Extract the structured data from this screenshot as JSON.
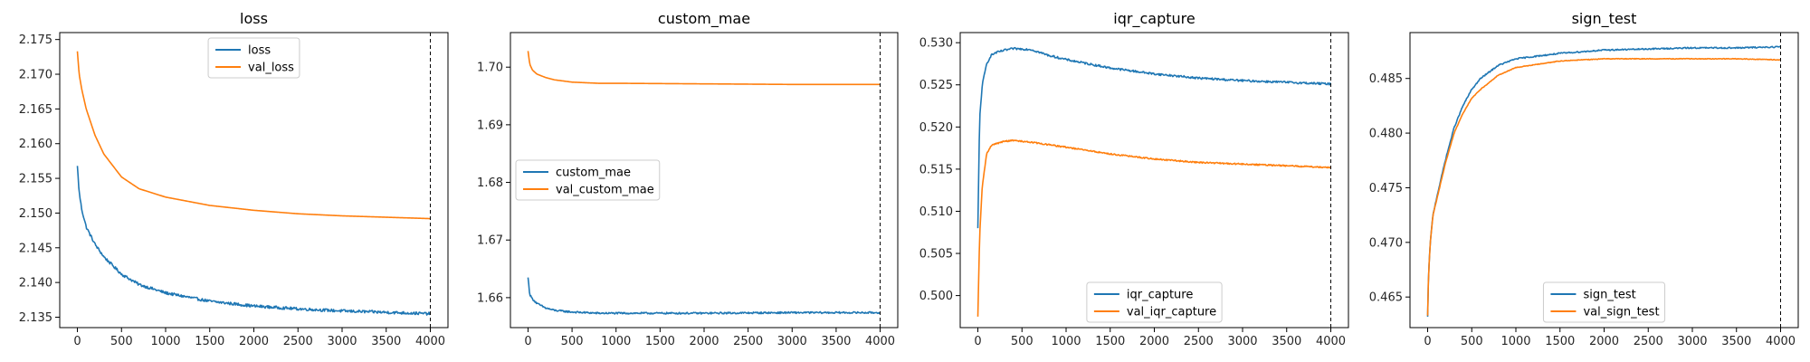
{
  "colors": {
    "series1": "#1f77b4",
    "series2": "#ff7f0e",
    "axis": "#000000",
    "vline": "#000000"
  },
  "chart_data": [
    {
      "type": "line",
      "title": "loss",
      "xlim": [
        -200,
        4200
      ],
      "ylim": [
        2.1335,
        2.176
      ],
      "xticks": [
        0,
        500,
        1000,
        1500,
        2000,
        2500,
        3000,
        3500,
        4000
      ],
      "yticks": [
        2.135,
        2.14,
        2.145,
        2.15,
        2.155,
        2.16,
        2.165,
        2.17,
        2.175
      ],
      "ytick_labels": [
        "2.135",
        "2.140",
        "2.145",
        "2.150",
        "2.155",
        "2.160",
        "2.165",
        "2.170",
        "2.175"
      ],
      "vline_x": 4000,
      "legend": "upper-center",
      "series": [
        {
          "name": "loss",
          "noise": 0.0002,
          "x": [
            0,
            20,
            50,
            100,
            200,
            300,
            500,
            700,
            1000,
            1500,
            2000,
            2500,
            3000,
            3500,
            4000
          ],
          "y": [
            2.1568,
            2.153,
            2.1505,
            2.148,
            2.1455,
            2.1437,
            2.1412,
            2.1397,
            2.1385,
            2.1373,
            2.1366,
            2.1362,
            2.1359,
            2.1357,
            2.1355
          ]
        },
        {
          "name": "val_loss",
          "noise": 0,
          "x": [
            0,
            20,
            50,
            100,
            200,
            300,
            500,
            700,
            1000,
            1500,
            2000,
            2500,
            3000,
            3500,
            4000
          ],
          "y": [
            2.1733,
            2.17,
            2.1678,
            2.165,
            2.1612,
            2.1585,
            2.1552,
            2.1535,
            2.1523,
            2.1511,
            2.1504,
            2.1499,
            2.1496,
            2.1494,
            2.1492
          ]
        }
      ]
    },
    {
      "type": "line",
      "title": "custom_mae",
      "xlim": [
        -200,
        4200
      ],
      "ylim": [
        1.6548,
        1.706
      ],
      "xticks": [
        0,
        500,
        1000,
        1500,
        2000,
        2500,
        3000,
        3500,
        4000
      ],
      "yticks": [
        1.66,
        1.67,
        1.68,
        1.69,
        1.7
      ],
      "ytick_labels": [
        "1.66",
        "1.67",
        "1.68",
        "1.69",
        "1.70"
      ],
      "vline_x": 4000,
      "legend": "center-left",
      "series": [
        {
          "name": "custom_mae",
          "noise": 0.00015,
          "x": [
            0,
            20,
            50,
            100,
            200,
            300,
            500,
            800,
            1000,
            2000,
            3000,
            4000
          ],
          "y": [
            1.6635,
            1.6605,
            1.6598,
            1.659,
            1.6582,
            1.6578,
            1.6575,
            1.6573,
            1.6573,
            1.6573,
            1.6574,
            1.6574
          ]
        },
        {
          "name": "val_custom_mae",
          "noise": 0,
          "x": [
            0,
            20,
            50,
            100,
            200,
            300,
            500,
            800,
            1000,
            2000,
            3000,
            4000
          ],
          "y": [
            1.7028,
            1.7005,
            1.6995,
            1.6988,
            1.6982,
            1.6978,
            1.6974,
            1.6972,
            1.6972,
            1.6971,
            1.697,
            1.697
          ]
        }
      ]
    },
    {
      "type": "line",
      "title": "iqr_capture",
      "xlim": [
        -200,
        4200
      ],
      "ylim": [
        0.4962,
        0.5312
      ],
      "xticks": [
        0,
        500,
        1000,
        1500,
        2000,
        2500,
        3000,
        3500,
        4000
      ],
      "yticks": [
        0.5,
        0.505,
        0.51,
        0.515,
        0.52,
        0.525,
        0.53
      ],
      "ytick_labels": [
        "0.500",
        "0.505",
        "0.510",
        "0.515",
        "0.520",
        "0.525",
        "0.530"
      ],
      "vline_x": 4000,
      "legend": "lower-center",
      "series": [
        {
          "name": "iqr_capture",
          "noise": 0.00012,
          "x": [
            0,
            20,
            50,
            100,
            150,
            200,
            300,
            400,
            600,
            800,
            1000,
            1500,
            2000,
            2500,
            3000,
            3500,
            4000
          ],
          "y": [
            0.508,
            0.521,
            0.525,
            0.5275,
            0.5285,
            0.5288,
            0.5291,
            0.5293,
            0.5292,
            0.5285,
            0.528,
            0.527,
            0.5263,
            0.5258,
            0.5255,
            0.5253,
            0.5251
          ]
        },
        {
          "name": "val_iqr_capture",
          "noise": 8e-05,
          "x": [
            0,
            20,
            50,
            100,
            150,
            200,
            300,
            400,
            600,
            800,
            1000,
            1500,
            2000,
            2500,
            3000,
            3500,
            4000
          ],
          "y": [
            0.4975,
            0.507,
            0.513,
            0.5168,
            0.5178,
            0.518,
            0.5183,
            0.5184,
            0.5182,
            0.5179,
            0.5176,
            0.5168,
            0.5162,
            0.5158,
            0.5156,
            0.5154,
            0.5152
          ]
        }
      ]
    },
    {
      "type": "line",
      "title": "sign_test",
      "xlim": [
        -200,
        4200
      ],
      "ylim": [
        0.4622,
        0.4892
      ],
      "xticks": [
        0,
        500,
        1000,
        1500,
        2000,
        2500,
        3000,
        3500,
        4000
      ],
      "yticks": [
        0.465,
        0.47,
        0.475,
        0.48,
        0.485
      ],
      "ytick_labels": [
        "0.465",
        "0.470",
        "0.475",
        "0.480",
        "0.485"
      ],
      "vline_x": 4000,
      "legend": "lower-center",
      "series": [
        {
          "name": "sign_test",
          "noise": 6e-05,
          "x": [
            0,
            10,
            30,
            60,
            100,
            200,
            300,
            400,
            500,
            600,
            800,
            1000,
            1500,
            2000,
            2500,
            3000,
            3500,
            4000
          ],
          "y": [
            0.4632,
            0.467,
            0.47,
            0.4725,
            0.474,
            0.4775,
            0.4805,
            0.4825,
            0.484,
            0.485,
            0.4862,
            0.4868,
            0.4873,
            0.4876,
            0.4877,
            0.4878,
            0.4878,
            0.4879
          ]
        },
        {
          "name": "val_sign_test",
          "noise": 3e-05,
          "x": [
            0,
            10,
            30,
            60,
            100,
            200,
            300,
            400,
            500,
            600,
            800,
            1000,
            1500,
            2000,
            2500,
            3000,
            3500,
            4000
          ],
          "y": [
            0.4633,
            0.467,
            0.47,
            0.4725,
            0.4738,
            0.4772,
            0.48,
            0.4818,
            0.4832,
            0.484,
            0.4853,
            0.486,
            0.4866,
            0.4868,
            0.4868,
            0.4868,
            0.4868,
            0.4867
          ]
        }
      ]
    }
  ]
}
